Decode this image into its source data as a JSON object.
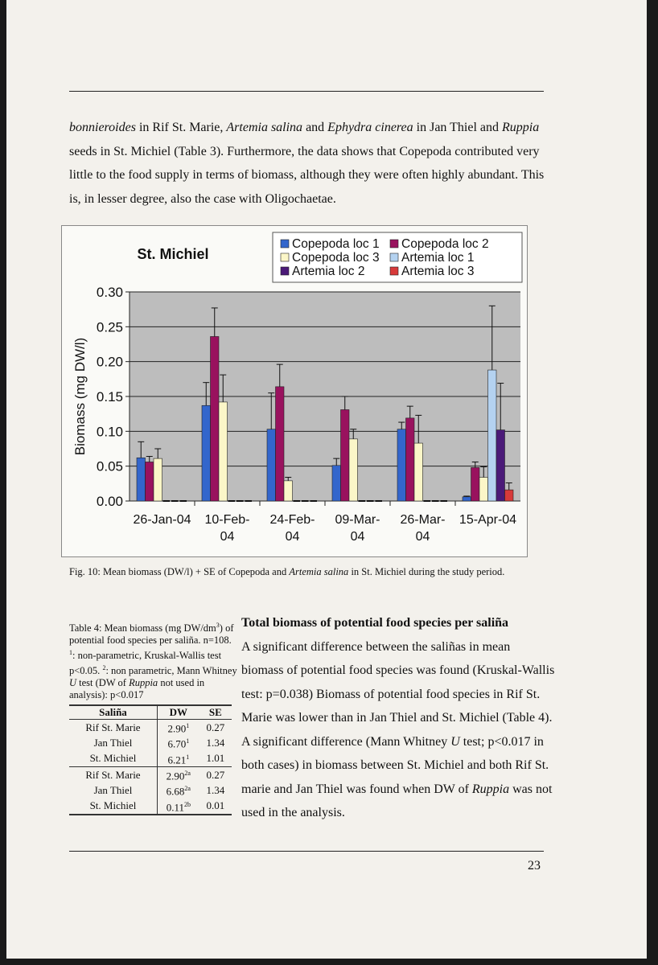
{
  "body_paragraph": {
    "parts": [
      {
        "t": "bonnieroides",
        "i": true
      },
      {
        "t": " in Rif St. Marie, "
      },
      {
        "t": "Artemia salina",
        "i": true
      },
      {
        "t": " and "
      },
      {
        "t": "Ephydra cinerea",
        "i": true
      },
      {
        "t": " in Jan Thiel and "
      },
      {
        "t": "Ruppia",
        "i": true
      },
      {
        "t": " seeds in St. Michiel (Table 3).  Furthermore, the data shows that Copepoda contributed very little to the food supply in terms of biomass, although they were often highly abundant. This is, in lesser degree, also the case with Oligochaetae."
      }
    ]
  },
  "figure_caption": {
    "prefix": "Fig. 10: Mean biomass (DW/l) + SE of Copepoda and ",
    "italic": "Artemia salina",
    "suffix": " in St. Michiel during the study period."
  },
  "chart_data": {
    "type": "bar",
    "title": "St. Michiel",
    "ylabel": "Biomass (mg DW/l)",
    "xlabel": "",
    "ylim": [
      0,
      0.3
    ],
    "yticks": [
      "0.00",
      "0.05",
      "0.10",
      "0.15",
      "0.20",
      "0.25",
      "0.30"
    ],
    "categories": [
      [
        "26-Jan-04"
      ],
      [
        "10-Feb-",
        "04"
      ],
      [
        "24-Feb-",
        "04"
      ],
      [
        "09-Mar-",
        "04"
      ],
      [
        "26-Mar-",
        "04"
      ],
      [
        "15-Apr-04"
      ]
    ],
    "grid": true,
    "legend_position": "top-right",
    "series": [
      {
        "name": "Copepoda loc 1",
        "color": "#3366cc",
        "values": [
          0.062,
          0.137,
          0.103,
          0.051,
          0.103,
          0.006
        ],
        "se": [
          0.023,
          0.033,
          0.052,
          0.01,
          0.01,
          0.001
        ]
      },
      {
        "name": "Copepoda loc 2",
        "color": "#99125e",
        "values": [
          0.056,
          0.236,
          0.164,
          0.131,
          0.119,
          0.048
        ],
        "se": [
          0.008,
          0.041,
          0.032,
          0.019,
          0.017,
          0.008
        ]
      },
      {
        "name": "Copepoda loc 3",
        "color": "#fbf6c8",
        "values": [
          0.061,
          0.142,
          0.029,
          0.089,
          0.083,
          0.034
        ],
        "se": [
          0.014,
          0.039,
          0.005,
          0.014,
          0.04,
          0.015
        ]
      },
      {
        "name": "Artemia loc 1",
        "color": "#b4d2f0",
        "values": [
          0,
          0,
          0,
          0,
          0,
          0.188
        ],
        "se": [
          0,
          0,
          0,
          0,
          0,
          0.092
        ]
      },
      {
        "name": "Artemia loc 2",
        "color": "#4b1a78",
        "values": [
          0,
          0,
          0,
          0,
          0,
          0.102
        ],
        "se": [
          0,
          0,
          0,
          0,
          0,
          0.067
        ]
      },
      {
        "name": "Artemia loc 3",
        "color": "#d83a3a",
        "values": [
          0,
          0,
          0,
          0,
          0,
          0.016
        ],
        "se": [
          0,
          0,
          0,
          0,
          0,
          0.01
        ]
      }
    ]
  },
  "table": {
    "caption_html": "Table 4: Mean biomass (mg DW/dm<sup>3</sup>) of potential food species per saliña. n=108. <sup>1</sup>: non-parametric, Kruskal-Wallis test p&lt;0.05. <sup>2</sup>: non parametric, Mann Whitney <i>U</i>  test (DW of <i>Ruppia</i> not used in analysis): p&lt;0.017",
    "headers": [
      "Saliña",
      "DW",
      "SE"
    ],
    "rows": [
      {
        "salina": "Rif St. Marie",
        "dw": "2.90",
        "sup": "1",
        "se": "0.27"
      },
      {
        "salina": "Jan Thiel",
        "dw": "6.70",
        "sup": "1",
        "se": "1.34"
      },
      {
        "salina": "St. Michiel",
        "dw": "6.21",
        "sup": "1",
        "se": "1.01"
      },
      {
        "salina": "Rif St. Marie",
        "dw": "2.90",
        "sup": "2a",
        "se": "0.27"
      },
      {
        "salina": "Jan Thiel",
        "dw": "6.68",
        "sup": "2a",
        "se": "1.34"
      },
      {
        "salina": "St. Michiel",
        "dw": "0.11",
        "sup": "2b",
        "se": "0.01"
      }
    ]
  },
  "section": {
    "heading": "Total biomass of potential food species per saliña",
    "text_html": "A significant difference between the saliñas in mean biomass of potential food species was found (Kruskal-Wallis test: p=0.038) Biomass of potential food species in Rif St. Marie was lower than in Jan Thiel and St. Michiel (Table 4). A significant difference (Mann Whitney <i>U</i>  test; p&lt;0.017 in both cases) in biomass between St. Michiel and both Rif St. marie and Jan Thiel was found when DW of <i>Ruppia</i>  was not used in the analysis."
  },
  "page_number": "23"
}
